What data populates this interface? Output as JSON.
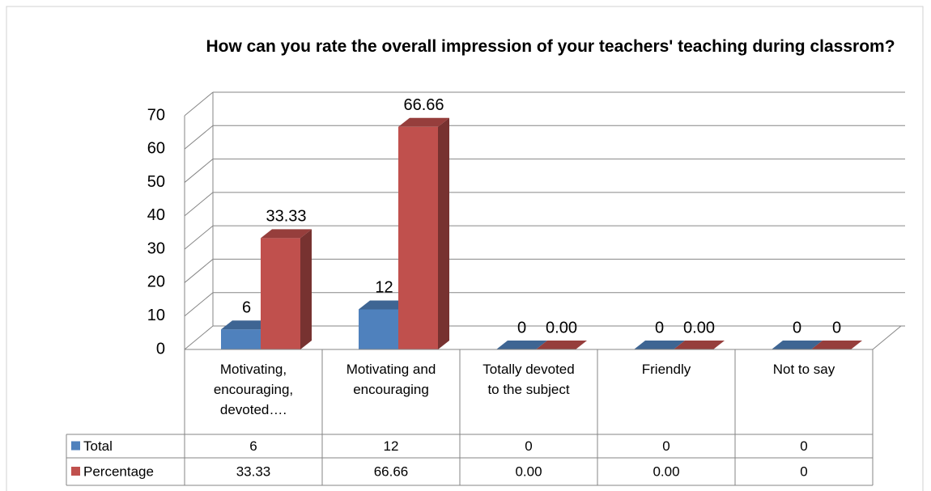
{
  "chart_data": {
    "type": "bar3d",
    "title": "How can you rate the overall impression of your teachers' teaching during classrom?",
    "categories": [
      "Motivating, encouraging, devoted….",
      "Motivating and encouraging",
      "Totally devoted to the subject",
      "Friendly",
      "Not to say"
    ],
    "series": [
      {
        "name": "Total",
        "color": "#4f81bd",
        "values": [
          6,
          12,
          0,
          0,
          0
        ]
      },
      {
        "name": "Percentage",
        "color": "#c0504d",
        "values": [
          33.33,
          66.66,
          0,
          0,
          0
        ],
        "value_labels": [
          "33.33",
          "66.66",
          "0.00",
          "0.00",
          "0"
        ]
      }
    ],
    "ylim": [
      0,
      70
    ],
    "yticks": [
      0,
      10,
      20,
      30,
      40,
      50,
      60,
      70
    ],
    "grid": true,
    "data_table": true
  }
}
